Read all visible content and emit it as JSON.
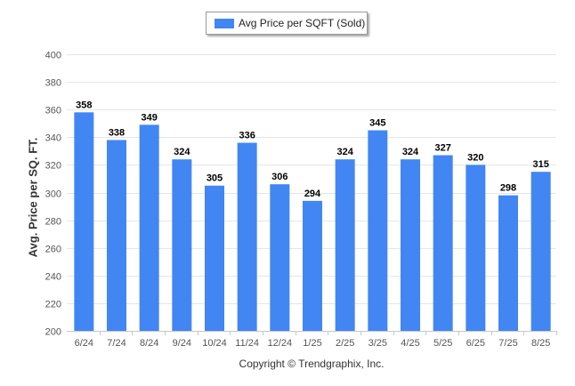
{
  "legend": {
    "label": "Avg Price per SQFT (Sold)",
    "color": "#4286f4"
  },
  "footer": {
    "copyright": "Copyright © Trendgraphix, Inc."
  },
  "chart_data": {
    "type": "bar",
    "ylabel": "Avg. Price per SQ. FT.",
    "xlabel": "",
    "ylim": [
      200,
      400
    ],
    "yticks": [
      200,
      220,
      240,
      260,
      280,
      300,
      320,
      340,
      360,
      380,
      400
    ],
    "grid": true,
    "legend_position": "top-center",
    "categories": [
      "6/24",
      "7/24",
      "8/24",
      "9/24",
      "10/24",
      "11/24",
      "12/24",
      "1/25",
      "2/25",
      "3/25",
      "4/25",
      "5/25",
      "6/25",
      "7/25",
      "8/25"
    ],
    "series": [
      {
        "name": "Avg Price per SQFT (Sold)",
        "color": "#4286f4",
        "values": [
          358,
          338,
          349,
          324,
          305,
          336,
          306,
          294,
          324,
          345,
          324,
          327,
          320,
          298,
          315
        ]
      }
    ]
  }
}
